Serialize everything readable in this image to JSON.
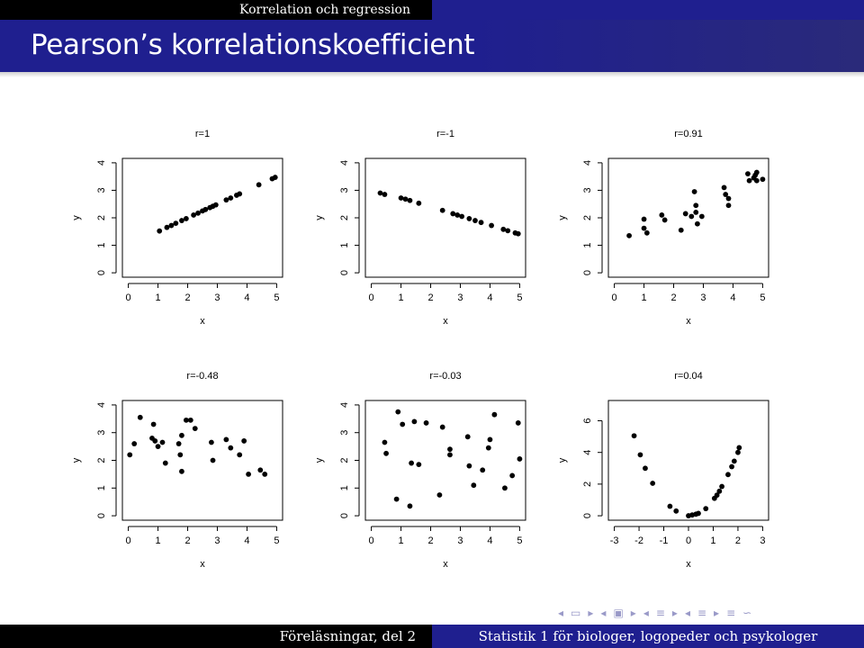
{
  "header": {
    "section": "Korrelation och regression",
    "title": "Pearson’s korrelationskoefficient"
  },
  "footer": {
    "left": "Föreläsningar, del 2",
    "right": "Statistik 1 för biologer, logopeder och psykologer"
  },
  "nav_icons": [
    "nav-prev-frame-icon",
    "nav-next-frame-icon",
    "nav-prev-slide-icon",
    "nav-next-slide-icon",
    "nav-prev-section-icon",
    "nav-next-section-icon",
    "nav-prev-subsection-icon",
    "nav-next-subsection-icon",
    "nav-align-icon",
    "nav-search-icon"
  ],
  "chart_data": [
    {
      "type": "scatter",
      "title": "r=1",
      "xlabel": "x",
      "ylabel": "y",
      "xlim": [
        0,
        5
      ],
      "ylim": [
        0,
        4
      ],
      "xticks": [
        0,
        1,
        2,
        3,
        4,
        5
      ],
      "yticks": [
        0,
        1,
        2,
        3,
        4
      ],
      "grid": false,
      "x": [
        1.05,
        1.3,
        1.45,
        1.6,
        1.8,
        1.95,
        2.2,
        2.35,
        2.5,
        2.6,
        2.75,
        2.85,
        2.95,
        3.3,
        3.45,
        3.65,
        3.75,
        4.4,
        4.85,
        4.95
      ],
      "y": [
        1.52,
        1.65,
        1.72,
        1.8,
        1.9,
        1.97,
        2.1,
        2.17,
        2.25,
        2.3,
        2.37,
        2.42,
        2.47,
        2.65,
        2.72,
        2.82,
        2.87,
        3.2,
        3.42,
        3.47
      ]
    },
    {
      "type": "scatter",
      "title": "r=-1",
      "xlabel": "x",
      "ylabel": "y",
      "xlim": [
        0,
        5
      ],
      "ylim": [
        0,
        4
      ],
      "xticks": [
        0,
        1,
        2,
        3,
        4,
        5
      ],
      "yticks": [
        0,
        1,
        2,
        3,
        4
      ],
      "grid": false,
      "x": [
        0.3,
        0.45,
        1.0,
        1.15,
        1.3,
        1.6,
        2.4,
        2.75,
        2.9,
        3.05,
        3.3,
        3.5,
        3.7,
        4.05,
        4.45,
        4.6,
        4.85,
        4.95
      ],
      "y": [
        2.9,
        2.85,
        2.72,
        2.68,
        2.63,
        2.53,
        2.27,
        2.15,
        2.1,
        2.05,
        1.97,
        1.9,
        1.83,
        1.72,
        1.58,
        1.53,
        1.45,
        1.42
      ]
    },
    {
      "type": "scatter",
      "title": "r=0.91",
      "xlabel": "x",
      "ylabel": "y",
      "xlim": [
        0,
        5
      ],
      "ylim": [
        0,
        4
      ],
      "xticks": [
        0,
        1,
        2,
        3,
        4,
        5
      ],
      "yticks": [
        0,
        1,
        2,
        3,
        4
      ],
      "grid": false,
      "x": [
        0.5,
        1.0,
        1.0,
        1.1,
        1.6,
        1.7,
        2.25,
        2.4,
        2.6,
        2.7,
        2.75,
        2.75,
        2.8,
        2.95,
        3.7,
        3.75,
        3.85,
        3.85,
        4.5,
        4.55,
        4.7,
        4.75,
        4.8,
        4.8,
        5.0
      ],
      "y": [
        1.35,
        1.95,
        1.62,
        1.45,
        2.1,
        1.92,
        1.55,
        2.15,
        2.05,
        2.95,
        2.45,
        2.2,
        1.78,
        2.05,
        3.1,
        2.85,
        2.7,
        2.45,
        3.6,
        3.35,
        3.45,
        3.55,
        3.65,
        3.35,
        3.4
      ]
    },
    {
      "type": "scatter",
      "title": "r=-0.48",
      "xlabel": "x",
      "ylabel": "y",
      "xlim": [
        0,
        5
      ],
      "ylim": [
        0,
        4
      ],
      "xticks": [
        0,
        1,
        2,
        3,
        4,
        5
      ],
      "yticks": [
        0,
        1,
        2,
        3,
        4
      ],
      "grid": false,
      "x": [
        0.05,
        0.2,
        0.4,
        0.8,
        0.85,
        0.9,
        1.0,
        1.15,
        1.25,
        1.7,
        1.75,
        1.8,
        1.8,
        1.95,
        2.1,
        2.25,
        2.8,
        2.85,
        3.3,
        3.45,
        3.75,
        3.9,
        4.05,
        4.45,
        4.6
      ],
      "y": [
        2.2,
        2.6,
        3.55,
        2.8,
        3.3,
        2.7,
        2.5,
        2.65,
        1.9,
        2.6,
        2.2,
        2.9,
        1.6,
        3.45,
        3.45,
        3.15,
        2.65,
        2.0,
        2.75,
        2.45,
        2.2,
        2.7,
        1.5,
        1.65,
        1.5
      ]
    },
    {
      "type": "scatter",
      "title": "r=-0.03",
      "xlabel": "x",
      "ylabel": "y",
      "xlim": [
        0,
        5
      ],
      "ylim": [
        0,
        4
      ],
      "xticks": [
        0,
        1,
        2,
        3,
        4,
        5
      ],
      "yticks": [
        0,
        1,
        2,
        3,
        4
      ],
      "grid": false,
      "x": [
        0.45,
        0.5,
        0.85,
        0.9,
        1.05,
        1.3,
        1.35,
        1.45,
        1.6,
        1.85,
        2.3,
        2.4,
        2.65,
        2.65,
        3.25,
        3.3,
        3.45,
        3.75,
        3.95,
        4.0,
        4.15,
        4.5,
        4.75,
        4.95,
        5.0
      ],
      "y": [
        2.65,
        2.25,
        0.6,
        3.75,
        3.3,
        0.35,
        1.9,
        3.4,
        1.85,
        3.35,
        0.75,
        3.2,
        2.4,
        2.2,
        2.85,
        1.8,
        1.1,
        1.65,
        2.45,
        2.75,
        3.65,
        1.0,
        1.45,
        3.35,
        2.05
      ]
    },
    {
      "type": "scatter",
      "title": "r=0.04",
      "xlabel": "x",
      "ylabel": "y",
      "xlim": [
        -3,
        3
      ],
      "ylim": [
        0,
        7
      ],
      "xticks": [
        -3,
        -2,
        -1,
        0,
        1,
        2,
        3
      ],
      "yticks": [
        0,
        2,
        4,
        6
      ],
      "grid": false,
      "x": [
        -2.2,
        -1.95,
        -1.75,
        -1.45,
        -0.75,
        -0.5,
        0.0,
        0.15,
        0.3,
        0.4,
        0.7,
        1.05,
        1.15,
        1.25,
        1.35,
        1.6,
        1.75,
        1.85,
        2.0,
        2.05
      ],
      "y": [
        5.05,
        3.85,
        3.0,
        2.05,
        0.6,
        0.3,
        0.0,
        0.05,
        0.1,
        0.15,
        0.45,
        1.1,
        1.3,
        1.55,
        1.85,
        2.6,
        3.1,
        3.45,
        4.0,
        4.3
      ]
    }
  ]
}
